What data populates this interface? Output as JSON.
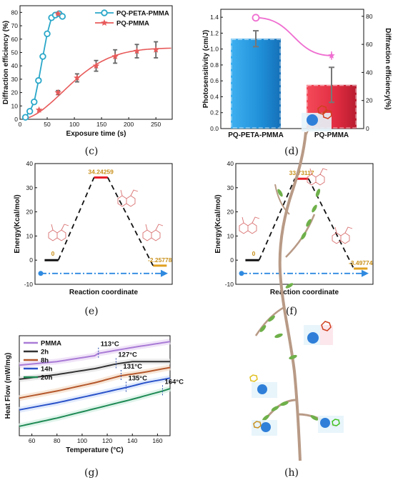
{
  "chart_data": [
    {
      "panel": "(c)",
      "type": "line",
      "xlabel": "Exposure time (s)",
      "ylabel": "Diffraction efficiency (%)",
      "xlim": [
        0,
        280
      ],
      "ylim": [
        0,
        85
      ],
      "xticks": [
        0,
        50,
        100,
        150,
        200,
        250
      ],
      "yticks": [
        0,
        10,
        20,
        30,
        40,
        50,
        60,
        70,
        80
      ],
      "legend_position": "top-right",
      "series": [
        {
          "name": "PQ-PETA-PMMA",
          "color": "#2aa7c9",
          "marker": "circle",
          "x": [
            10,
            18,
            26,
            34,
            42,
            50,
            58,
            65,
            72,
            78
          ],
          "y": [
            1.5,
            6,
            13,
            29,
            47,
            64,
            76,
            78,
            79,
            77
          ],
          "err": [
            0,
            0,
            0,
            0,
            0,
            0,
            0,
            0,
            0,
            0
          ]
        },
        {
          "name": "PQ-PMMA",
          "color": "#e85a5a",
          "marker": "star",
          "x": [
            35,
            70,
            105,
            140,
            175,
            215,
            250
          ],
          "y": [
            7,
            20,
            31,
            40,
            47,
            51,
            52
          ],
          "err": [
            0,
            1.5,
            3,
            4,
            5,
            5,
            6
          ]
        }
      ]
    },
    {
      "panel": "(d)",
      "type": "bar",
      "ylabel": "Photosensitivity (cm/J)",
      "y2label": "Diffraction efficiency(%)",
      "categories": [
        "PQ-PETA-PMMA",
        "PQ-PMMA"
      ],
      "ylim": [
        0,
        1.5
      ],
      "yticks": [
        0.0,
        0.2,
        0.4,
        0.6,
        0.8,
        1.0,
        1.2,
        1.4
      ],
      "y2lim": [
        0,
        85
      ],
      "y2ticks": [
        0,
        20,
        40,
        60,
        80
      ],
      "bar_values": [
        1.13,
        0.55
      ],
      "bar_err": [
        0.1,
        0.22
      ],
      "bar_colors": [
        "#1f96e0",
        "#e8344a"
      ],
      "line_values": [
        79,
        52
      ],
      "line_err": [
        0,
        3
      ],
      "line_color": "#ef6fd1"
    },
    {
      "panel": "(e)",
      "type": "line",
      "xlabel": "Reaction coordinate",
      "ylabel": "Energy(Kcal/mol)",
      "ylim": [
        -10,
        40
      ],
      "yticks": [
        -10,
        0,
        10,
        20,
        30,
        40
      ],
      "levels": [
        0,
        34.24259,
        -2.25778
      ],
      "level_labels": [
        "0",
        "34.24259",
        "-2.25778"
      ]
    },
    {
      "panel": "(f)",
      "type": "line",
      "xlabel": "Reaction coordinate",
      "ylabel": "Energy(Kcal/mol)",
      "ylim": [
        -10,
        40
      ],
      "yticks": [
        -10,
        0,
        10,
        20,
        30,
        40
      ],
      "levels": [
        0,
        33.73117,
        -3.49774
      ],
      "level_labels": [
        "0",
        "33.73117",
        "-3.49774"
      ]
    },
    {
      "panel": "(g)",
      "type": "line",
      "xlabel": "Temperature (°C)",
      "ylabel": "Heat Flow (mW/mg)",
      "xlim": [
        50,
        170
      ],
      "xticks": [
        60,
        80,
        100,
        120,
        140,
        160
      ],
      "legend_position": "top-left",
      "series": [
        {
          "name": "PMMA",
          "color": "#a97bd6",
          "x": [
            50,
            80,
            110,
            113,
            140,
            170
          ],
          "y": [
            0.8,
            0.83,
            0.88,
            0.9,
            0.95,
            1.0
          ],
          "tg": 113,
          "tg_label": "113°C"
        },
        {
          "name": "2h",
          "color": "#333333",
          "x": [
            50,
            80,
            110,
            127,
            140,
            170
          ],
          "y": [
            0.68,
            0.72,
            0.77,
            0.81,
            0.83,
            0.83
          ],
          "tg": 127,
          "tg_label": "127°C"
        },
        {
          "name": "8h",
          "color": "#b5582c",
          "x": [
            50,
            80,
            110,
            131,
            150,
            170
          ],
          "y": [
            0.52,
            0.58,
            0.65,
            0.71,
            0.74,
            0.78
          ],
          "tg": 131,
          "tg_label": "131°C"
        },
        {
          "name": "14h",
          "color": "#2a52c9",
          "x": [
            50,
            80,
            110,
            135,
            150,
            170
          ],
          "y": [
            0.42,
            0.48,
            0.55,
            0.61,
            0.65,
            0.69
          ],
          "tg": 135,
          "tg_label": "135°C"
        },
        {
          "name": "20h",
          "color": "#1f8a55",
          "x": [
            50,
            80,
            110,
            140,
            164,
            170
          ],
          "y": [
            0.28,
            0.35,
            0.43,
            0.51,
            0.58,
            0.6
          ],
          "tg": 164,
          "tg_label": "164°C"
        }
      ]
    }
  ],
  "captions": {
    "c": "(c)",
    "d": "(d)",
    "e": "(e)",
    "f": "(f)",
    "g": "(g)",
    "h": "(h)"
  }
}
